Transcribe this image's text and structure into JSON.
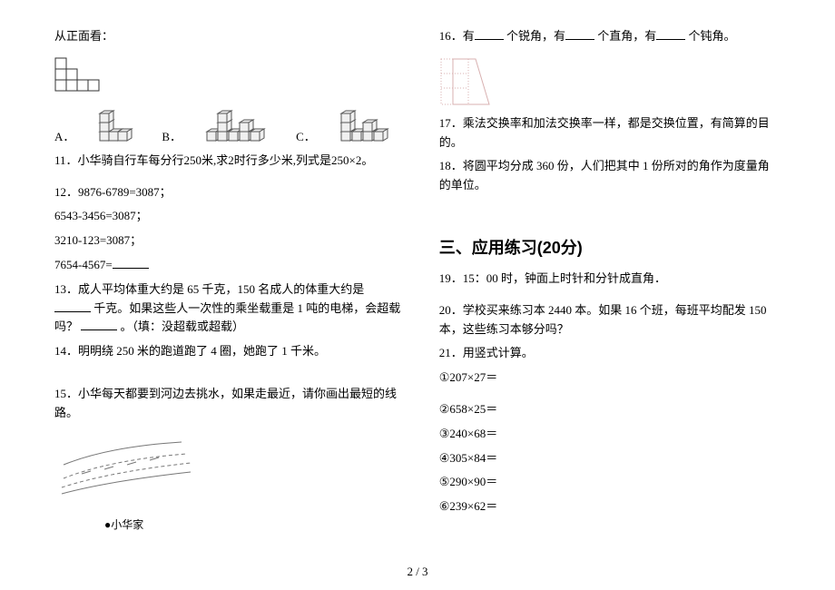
{
  "left_col": {
    "front_view_label": "从正面看：",
    "front_view_grid": {
      "rows": 3,
      "cols": 4,
      "cell_size": 12,
      "filled": [
        [
          0,
          0
        ],
        [
          1,
          0
        ],
        [
          1,
          1
        ],
        [
          2,
          0
        ],
        [
          2,
          1
        ],
        [
          2,
          2
        ],
        [
          2,
          3
        ]
      ],
      "stroke": "#333333"
    },
    "option_labels": [
      "A．",
      "B．",
      "C．"
    ],
    "cube_svgs": {
      "stroke": "#555555",
      "fill": "#f0f0f0"
    },
    "q11": "11．小华骑自行车每分行250米,求2时行多少米,列式是250×2。",
    "q12_line1": "12．9876-6789=3087；",
    "q12_line2": "6543-3456=3087；",
    "q12_line3": "3210-123=3087；",
    "q12_line4": "7654-4567=",
    "q13_text1": "13．成人平均体重大约是 65 千克，150 名成人的体重大约是",
    "q13_text2": "千克。如果这些人一次性的乘坐载重是 1 吨的电梯，会超载吗？",
    "q13_text3": "。（填：没超载或超载）",
    "q14": "14．明明绕 250 米的跑道跑了 4 圈，她跑了 1 千米。",
    "q15": "15．小华每天都要到河边去挑水，如果走最近，请你画出最短的线路。",
    "xiaohua_label": "●小华家",
    "river": {
      "stroke": "#777777"
    }
  },
  "right_col": {
    "q16_parts": [
      "16．有",
      "个锐角，有",
      "个直角，有",
      "个钝角。"
    ],
    "shape": {
      "stroke": "#d8b0b0",
      "fill": "#ffffff"
    },
    "q17": "17．乘法交换率和加法交换率一样，都是交换位置，有简算的目的。",
    "q18": "18．将圆平均分成 360 份，人们把其中 1 份所对的角作为度量角的单位。",
    "section3_title": "三、应用练习(20分)",
    "q19": "19．15：00 时，钟面上时针和分针成直角．",
    "q20": "20．学校买来练习本 2440 本。如果 16 个班，每班平均配发 150本，这些练习本够分吗？",
    "q21": "21．用竖式计算。",
    "calcs": [
      "①207×27＝",
      "②658×25＝",
      "③240×68＝",
      "④305×84＝",
      "⑤290×90＝",
      "⑥239×62＝"
    ]
  },
  "page_number": "2 / 3"
}
